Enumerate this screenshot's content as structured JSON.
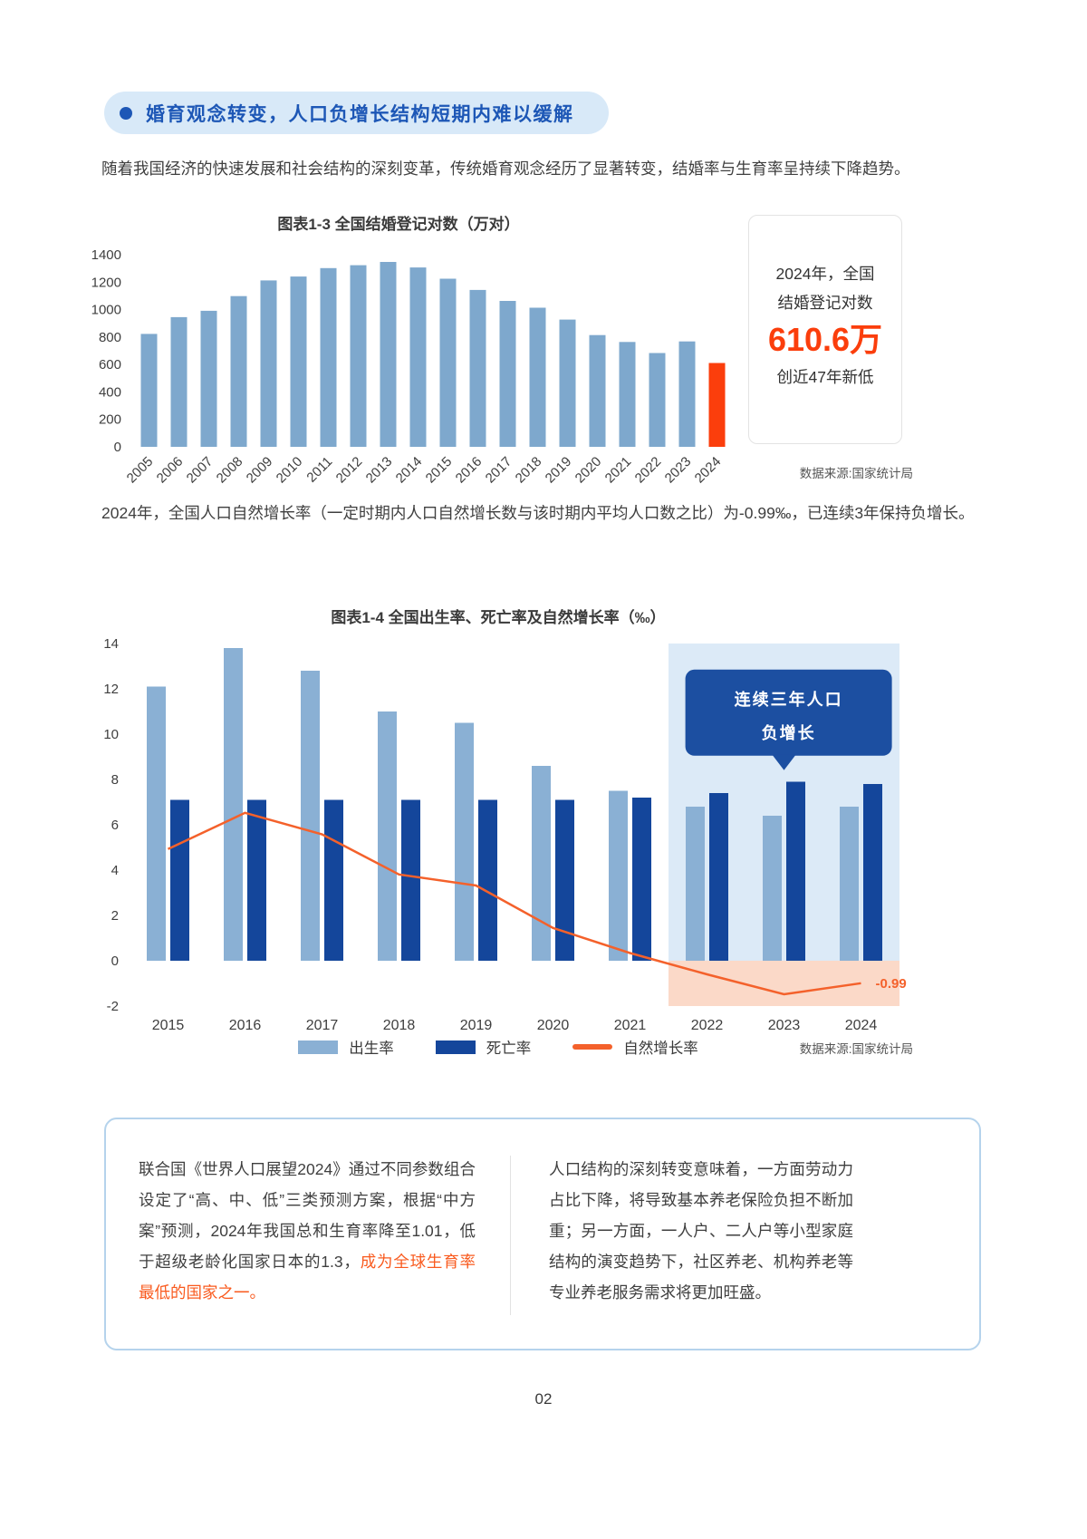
{
  "page": {
    "number": "02"
  },
  "header": {
    "title": "婚育观念转变，人口负增长结构短期内难以缓解"
  },
  "paragraphs": {
    "intro": "随着我国经济的快速发展和社会结构的深刻变革，传统婚育观念经历了显著转变，结婚率与生育率呈持续下降趋势。",
    "mid": "2024年，全国人口自然增长率（一定时期内人口自然增长数与该时期内平均人口数之比）为-0.99‰，已连续3年保持负增长。"
  },
  "side_panel": {
    "line1": "2024年，全国",
    "line2": "结婚登记对数",
    "big_number": "610.6万",
    "line3": "创近47年新低"
  },
  "colors": {
    "accent_blue": "#1D57B6",
    "light_blue_bar": "#7EA8CD",
    "dark_blue_bar": "#14469B",
    "accent_orange": "#FB3E0C",
    "line_orange": "#F4612B",
    "callout_blue": "#1C4FA1",
    "highlight_bg": "#DCEAF7",
    "highlight_neg_bg": "#FBD9C8"
  },
  "chart_data": [
    {
      "id": "marriage-registrations",
      "type": "bar",
      "title": "图表1-3 全国结婚登记对数（万对）",
      "categories": [
        "2005",
        "2006",
        "2007",
        "2008",
        "2009",
        "2010",
        "2011",
        "2012",
        "2013",
        "2014",
        "2015",
        "2016",
        "2017",
        "2018",
        "2019",
        "2020",
        "2021",
        "2022",
        "2023",
        "2024"
      ],
      "values": [
        823.1,
        945.0,
        991.4,
        1098.3,
        1212.2,
        1241.0,
        1302.4,
        1323.6,
        1346.9,
        1306.7,
        1224.7,
        1142.8,
        1063.1,
        1013.9,
        927.3,
        814.3,
        764.3,
        683.5,
        768.2,
        610.6
      ],
      "ylim": [
        0,
        1400
      ],
      "ytick_step": 200,
      "bar_color": "#7EA8CD",
      "highlight_last_bar_color": "#FB3E0C",
      "source": "数据来源:国家统计局"
    },
    {
      "id": "birth-death-growth-rates",
      "type": "bar+line",
      "title": "图表1-4 全国出生率、死亡率及自然增长率（‰）",
      "categories": [
        "2015",
        "2016",
        "2017",
        "2018",
        "2019",
        "2020",
        "2021",
        "2022",
        "2023",
        "2024"
      ],
      "series": [
        {
          "name": "出生率",
          "type": "bar",
          "color": "#8AB0D4",
          "values": [
            12.1,
            13.8,
            12.8,
            11.0,
            10.5,
            8.6,
            7.5,
            6.8,
            6.4,
            6.8
          ]
        },
        {
          "name": "死亡率",
          "type": "bar",
          "color": "#14469B",
          "values": [
            7.1,
            7.1,
            7.1,
            7.1,
            7.1,
            7.1,
            7.2,
            7.4,
            7.9,
            7.8
          ]
        },
        {
          "name": "自然增长率",
          "type": "line",
          "color": "#F4612B",
          "values": [
            4.93,
            6.53,
            5.58,
            3.81,
            3.32,
            1.45,
            0.34,
            -0.6,
            -1.48,
            -0.99
          ]
        }
      ],
      "ylim": [
        -2,
        14
      ],
      "ytick_step": 2,
      "highlight_years": [
        "2022",
        "2023",
        "2024"
      ],
      "annotation": {
        "line1": "连续三年人口",
        "line2": "负增长"
      },
      "end_label": "-0.99",
      "source": "数据来源:国家统计局"
    }
  ],
  "info_box": {
    "left_text": "联合国《世界人口展望2024》通过不同参数组合设定了“高、中、低”三类预测方案，根据“中方案”预测，2024年我国总和生育率降至1.01，低于超级老龄化国家日本的1.3，",
    "left_highlight": "成为全球生育率最低的国家之一。",
    "right_text": "人口结构的深刻转变意味着，一方面劳动力占比下降，将导致基本养老保险负担不断加重；另一方面，一人户、二人户等小型家庭结构的演变趋势下，社区养老、机构养老等专业养老服务需求将更加旺盛。"
  }
}
